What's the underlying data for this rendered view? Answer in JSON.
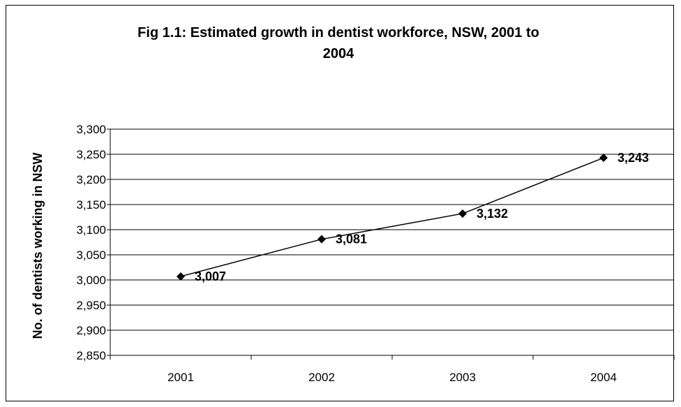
{
  "chart_data": {
    "type": "line",
    "title_line1": "Fig 1.1: Estimated growth in dentist workforce, NSW, 2001 to",
    "title_line2": "2004",
    "xlabel": "",
    "ylabel": "No. of dentists working in NSW",
    "categories": [
      "2001",
      "2002",
      "2003",
      "2004"
    ],
    "series": [
      {
        "values": [
          3007,
          3081,
          3132,
          3243
        ]
      }
    ],
    "data_labels": [
      "3,007",
      "3,081",
      "3,132",
      "3,243"
    ],
    "ylim": [
      2850,
      3300
    ],
    "ytick_step": 50,
    "ytick_labels": [
      "2,850",
      "2,900",
      "2,950",
      "3,000",
      "3,050",
      "3,100",
      "3,150",
      "3,200",
      "3,250",
      "3,300"
    ],
    "grid": true,
    "legend": "none",
    "colors": {
      "line": "#000000",
      "marker": "#000000",
      "grid": "#000000",
      "axis": "#000000",
      "text": "#000000"
    }
  }
}
